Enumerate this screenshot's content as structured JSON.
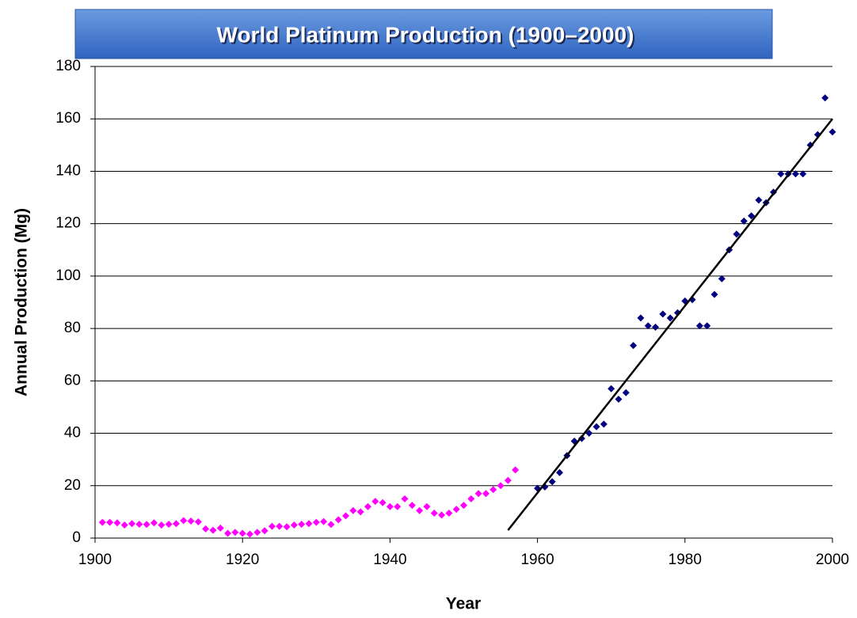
{
  "chart_data": {
    "type": "scatter",
    "title": "World Platinum Production (1900–2000)",
    "xlabel": "Year",
    "ylabel": "Annual Production (Mg)",
    "xlim": [
      1900,
      2000
    ],
    "xticks": [
      1900,
      1920,
      1940,
      1960,
      1980,
      2000
    ],
    "ylim": [
      0,
      180
    ],
    "yticks": [
      0,
      20,
      40,
      60,
      80,
      100,
      120,
      140,
      160,
      180
    ],
    "grid": true,
    "series": [
      {
        "color": "#ff00ff",
        "marker": "diamond",
        "x": [
          1901,
          1902,
          1903,
          1904,
          1905,
          1906,
          1907,
          1908,
          1909,
          1910,
          1911,
          1912,
          1913,
          1914,
          1915,
          1916,
          1917,
          1918,
          1919,
          1920,
          1921,
          1922,
          1923,
          1924,
          1925,
          1926,
          1927,
          1928,
          1929,
          1930,
          1931,
          1932,
          1933,
          1934,
          1935,
          1936,
          1937,
          1938,
          1939,
          1940,
          1941,
          1942,
          1943,
          1944,
          1945,
          1946,
          1947,
          1948,
          1949,
          1950,
          1951,
          1952,
          1953,
          1954,
          1955,
          1956,
          1957
        ],
        "values": [
          6,
          6,
          5.8,
          5,
          5.5,
          5.3,
          5.2,
          5.8,
          5,
          5.3,
          5.5,
          6.7,
          6.5,
          6.2,
          3.5,
          3,
          3.8,
          1.8,
          2.2,
          1.8,
          1.5,
          2.2,
          2.8,
          4.5,
          4.5,
          4.3,
          5,
          5.3,
          5.5,
          6,
          6.3,
          5.2,
          7,
          8.5,
          10.5,
          10,
          12,
          14,
          13.5,
          12,
          12,
          15,
          12.5,
          10.5,
          12,
          9.5,
          8.8,
          9.5,
          11,
          12.5,
          15,
          17,
          17,
          18.5,
          20,
          22,
          26
        ]
      },
      {
        "color": "#000080",
        "marker": "diamond",
        "x": [
          1960,
          1961,
          1962,
          1963,
          1964,
          1965,
          1966,
          1967,
          1968,
          1969,
          1970,
          1971,
          1972,
          1973,
          1974,
          1975,
          1976,
          1977,
          1978,
          1979,
          1980,
          1981,
          1982,
          1983,
          1984,
          1985,
          1986,
          1987,
          1988,
          1989,
          1990,
          1991,
          1992,
          1993,
          1994,
          1995,
          1996,
          1997,
          1998,
          1999,
          2000
        ],
        "values": [
          19,
          19.5,
          21.5,
          25,
          31.5,
          37,
          38,
          40,
          42.5,
          43.5,
          57,
          53,
          55.5,
          73.5,
          84,
          81,
          80.5,
          85.5,
          84,
          86,
          90.5,
          91,
          81,
          81,
          93,
          99,
          110,
          116,
          121,
          123,
          129,
          128,
          132,
          139,
          139,
          139,
          139,
          150,
          154,
          168,
          155
        ]
      },
      {
        "color": "#000000",
        "marker": "line",
        "x": [
          1956,
          2000
        ],
        "values": [
          3,
          160
        ]
      }
    ]
  }
}
